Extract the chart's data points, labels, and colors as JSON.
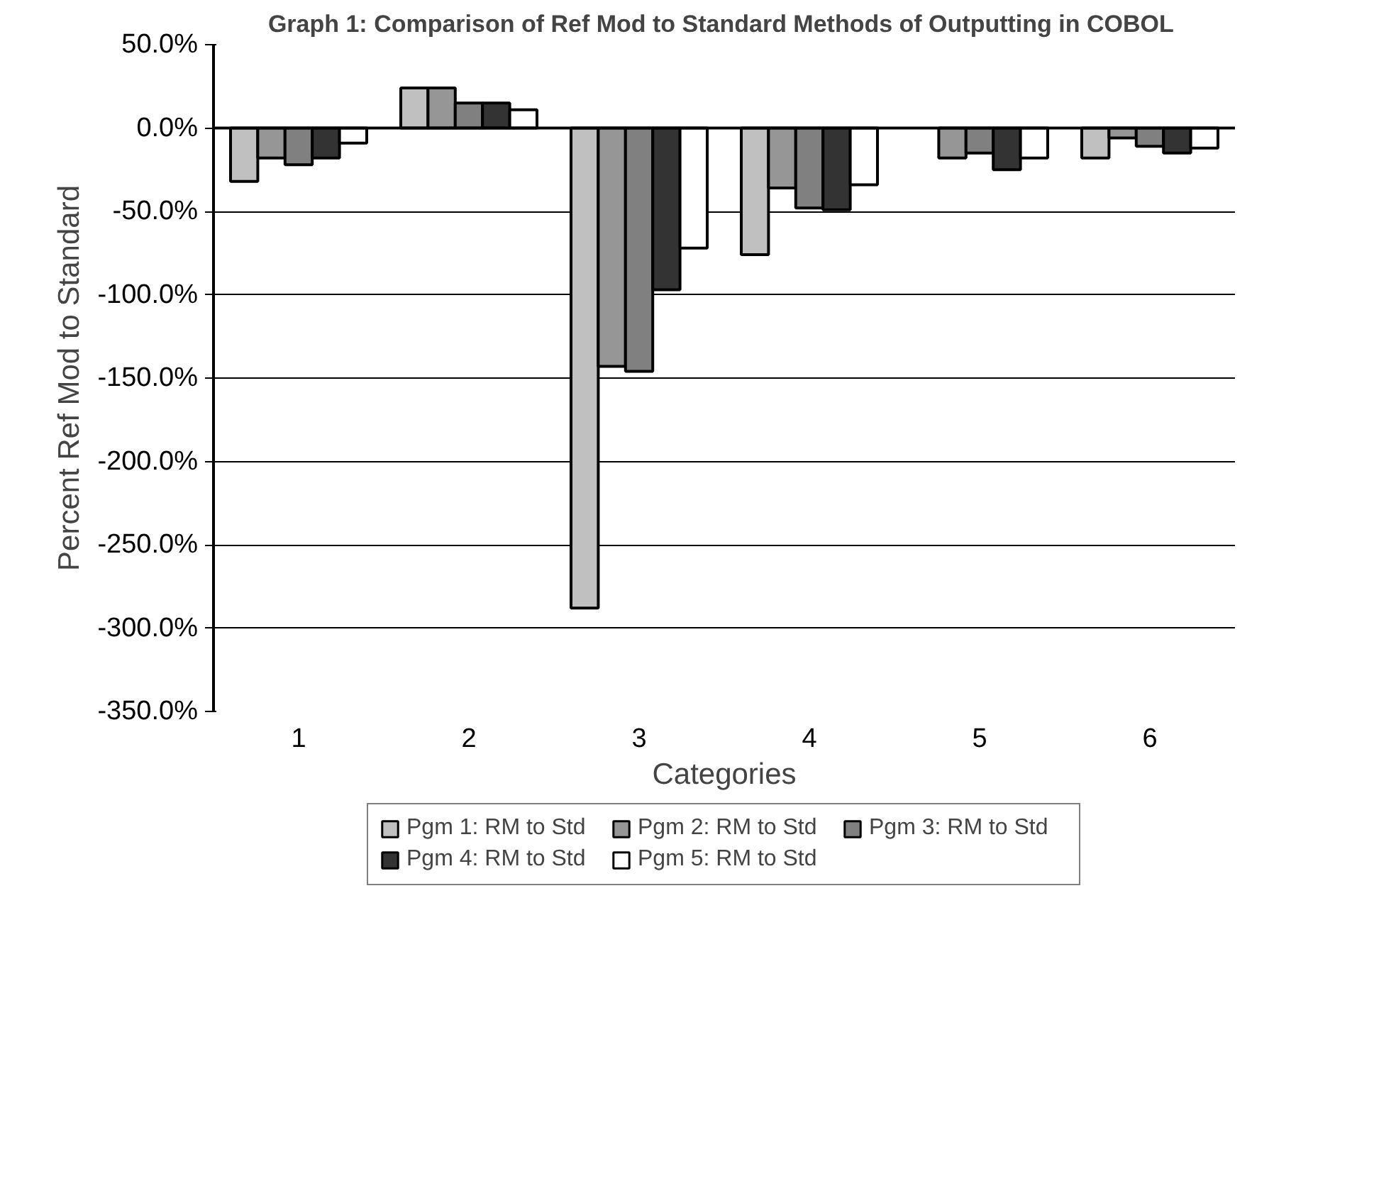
{
  "chart_data": {
    "type": "bar",
    "title": "Graph 1:  Comparison of Ref Mod to Standard Methods of Outputting in COBOL",
    "xlabel": "Categories",
    "ylabel": "Percent Ref Mod to Standard",
    "categories": [
      "1",
      "2",
      "3",
      "4",
      "5",
      "6"
    ],
    "series": [
      {
        "name": "Pgm 1: RM to Std",
        "color": "#c0c0c0",
        "values": [
          -32,
          24,
          -288,
          -76,
          null,
          -18
        ]
      },
      {
        "name": "Pgm 2: RM to Std",
        "color": "#969696",
        "values": [
          -18,
          24,
          -143,
          -36,
          -18,
          -6
        ]
      },
      {
        "name": "Pgm 3: RM to Std",
        "color": "#808080",
        "values": [
          -22,
          15,
          -146,
          -48,
          -15,
          -11
        ]
      },
      {
        "name": "Pgm 4: RM to Std",
        "color": "#333333",
        "values": [
          -18,
          15,
          -97,
          -49,
          -25,
          -15
        ]
      },
      {
        "name": "Pgm 5: RM to Std",
        "color": "#ffffff",
        "values": [
          -9,
          11,
          -72,
          -34,
          -18,
          -12
        ]
      }
    ],
    "ylim": [
      -350,
      50
    ],
    "yticks": [
      {
        "value": 50,
        "label": "50.0%"
      },
      {
        "value": 0,
        "label": "0.0%"
      },
      {
        "value": -50,
        "label": "-50.0%"
      },
      {
        "value": -100,
        "label": "-100.0%"
      },
      {
        "value": -150,
        "label": "-150.0%"
      },
      {
        "value": -200,
        "label": "-200.0%"
      },
      {
        "value": -250,
        "label": "-250.0%"
      },
      {
        "value": -300,
        "label": "-300.0%"
      },
      {
        "value": -350,
        "label": "-350.0%"
      }
    ],
    "grid": "y",
    "legend": "bottom"
  }
}
